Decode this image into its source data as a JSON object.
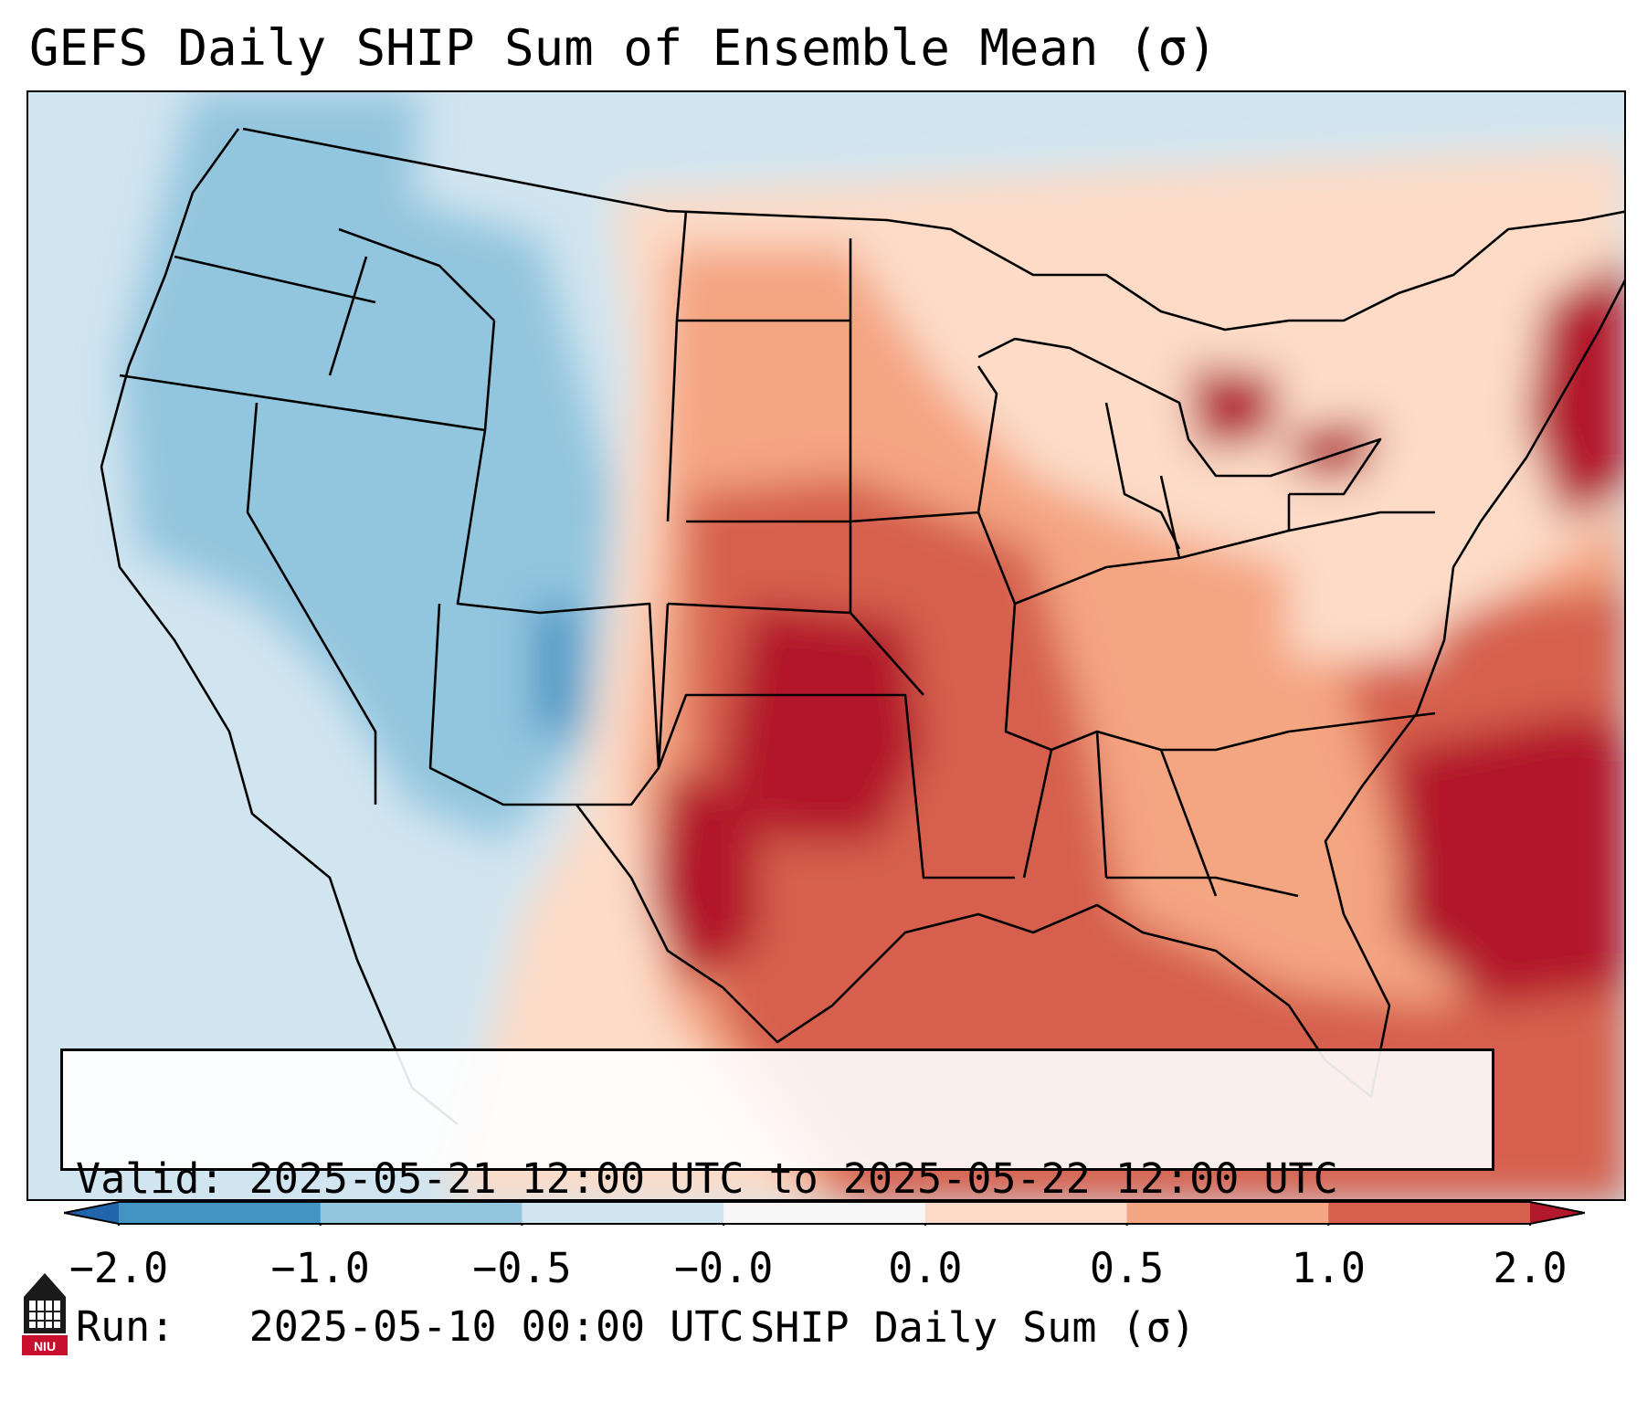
{
  "title": "GEFS Daily SHIP Sum of Ensemble Mean (σ)",
  "info": {
    "valid_label": "Valid:",
    "valid_value": "2025-05-21 12:00 UTC to 2025-05-22 12:00 UTC",
    "run_label": "Run:",
    "run_value": "2025-05-10 00:00 UTC"
  },
  "colorbar": {
    "label": "SHIP Daily Sum (σ)",
    "ticks": [
      "−2.0",
      "−1.0",
      "−0.5",
      "−0.0",
      "0.0",
      "0.5",
      "1.0",
      "2.0"
    ],
    "colors": [
      "#4393c3",
      "#92c5de",
      "#d1e5f0",
      "#f7f7f7",
      "#fddbc7",
      "#f4a582",
      "#d6604d",
      "#b2182b"
    ],
    "under_color": "#2166ac",
    "over_color": "#67001f"
  },
  "logo": {
    "icon": "niu-university-logo",
    "text": "NIU"
  }
}
